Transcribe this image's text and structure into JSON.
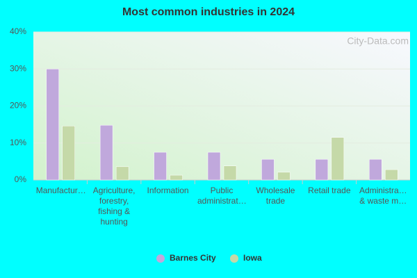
{
  "chart_data": {
    "type": "bar",
    "title": "Most common industries in 2024",
    "watermark": "City-Data.com",
    "categories": [
      "Manufactur…",
      "Agriculture, forestry, fishing & hunting",
      "Information",
      "Public administrat…",
      "Wholesale trade",
      "Retail trade",
      "Administra… & waste m…"
    ],
    "series": [
      {
        "name": "Barnes City",
        "color": "#c0a8dc",
        "values": [
          30.0,
          14.8,
          7.5,
          7.5,
          5.6,
          5.6,
          5.6
        ]
      },
      {
        "name": "Iowa",
        "color": "#c5d9a8",
        "values": [
          14.6,
          3.6,
          1.3,
          3.8,
          2.1,
          11.5,
          2.8
        ]
      }
    ],
    "ylim": [
      0,
      40
    ],
    "yticks": [
      {
        "value": 0,
        "label": "0%"
      },
      {
        "value": 10,
        "label": "10%"
      },
      {
        "value": 20,
        "label": "20%"
      },
      {
        "value": 30,
        "label": "30%"
      },
      {
        "value": 40,
        "label": "40%"
      }
    ],
    "grid": true
  }
}
